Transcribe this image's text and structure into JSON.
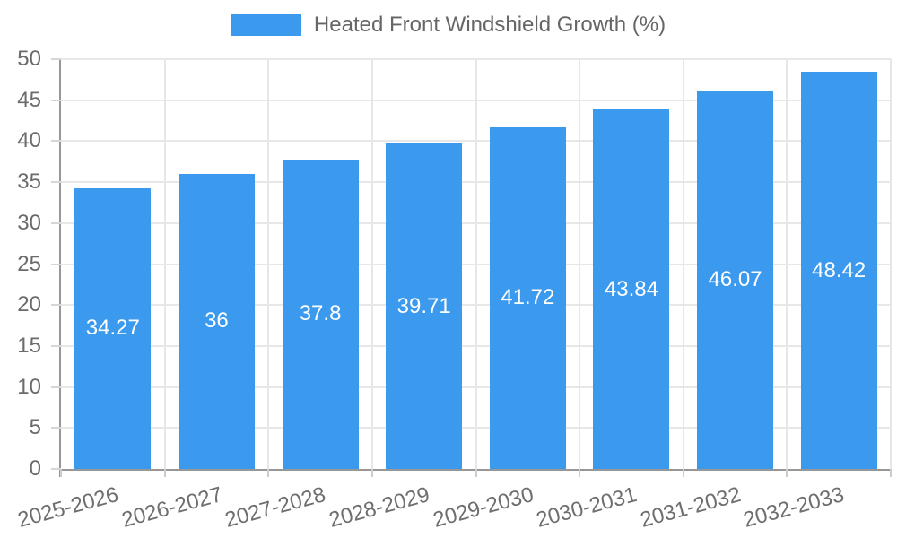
{
  "chart_data": {
    "type": "bar",
    "title": "",
    "legend": {
      "position": "top",
      "label": "Heated Front Windshield Growth (%)"
    },
    "categories": [
      "2025-2026",
      "2026-2027",
      "2027-2028",
      "2028-2029",
      "2029-2030",
      "2030-2031",
      "2031-2032",
      "2032-2033"
    ],
    "series": [
      {
        "name": "Heated Front Windshield Growth (%)",
        "values": [
          34.27,
          36,
          37.8,
          39.71,
          41.72,
          43.84,
          46.07,
          48.42
        ],
        "value_labels": [
          "34.27",
          "36",
          "37.8",
          "39.71",
          "41.72",
          "43.84",
          "46.07",
          "48.42"
        ]
      }
    ],
    "xlabel": "",
    "ylabel": "",
    "ylim": [
      0,
      50
    ],
    "yticks": [
      0,
      5,
      10,
      15,
      20,
      25,
      30,
      35,
      40,
      45,
      50
    ],
    "grid": true,
    "x_label_rotation_deg": -15,
    "colors": {
      "bar": "#3b99ee",
      "bar_value_label": "#ffffff",
      "axis_text": "#6b6b6b",
      "gridline": "#e7e7e7",
      "axis_line": "#979797"
    }
  }
}
